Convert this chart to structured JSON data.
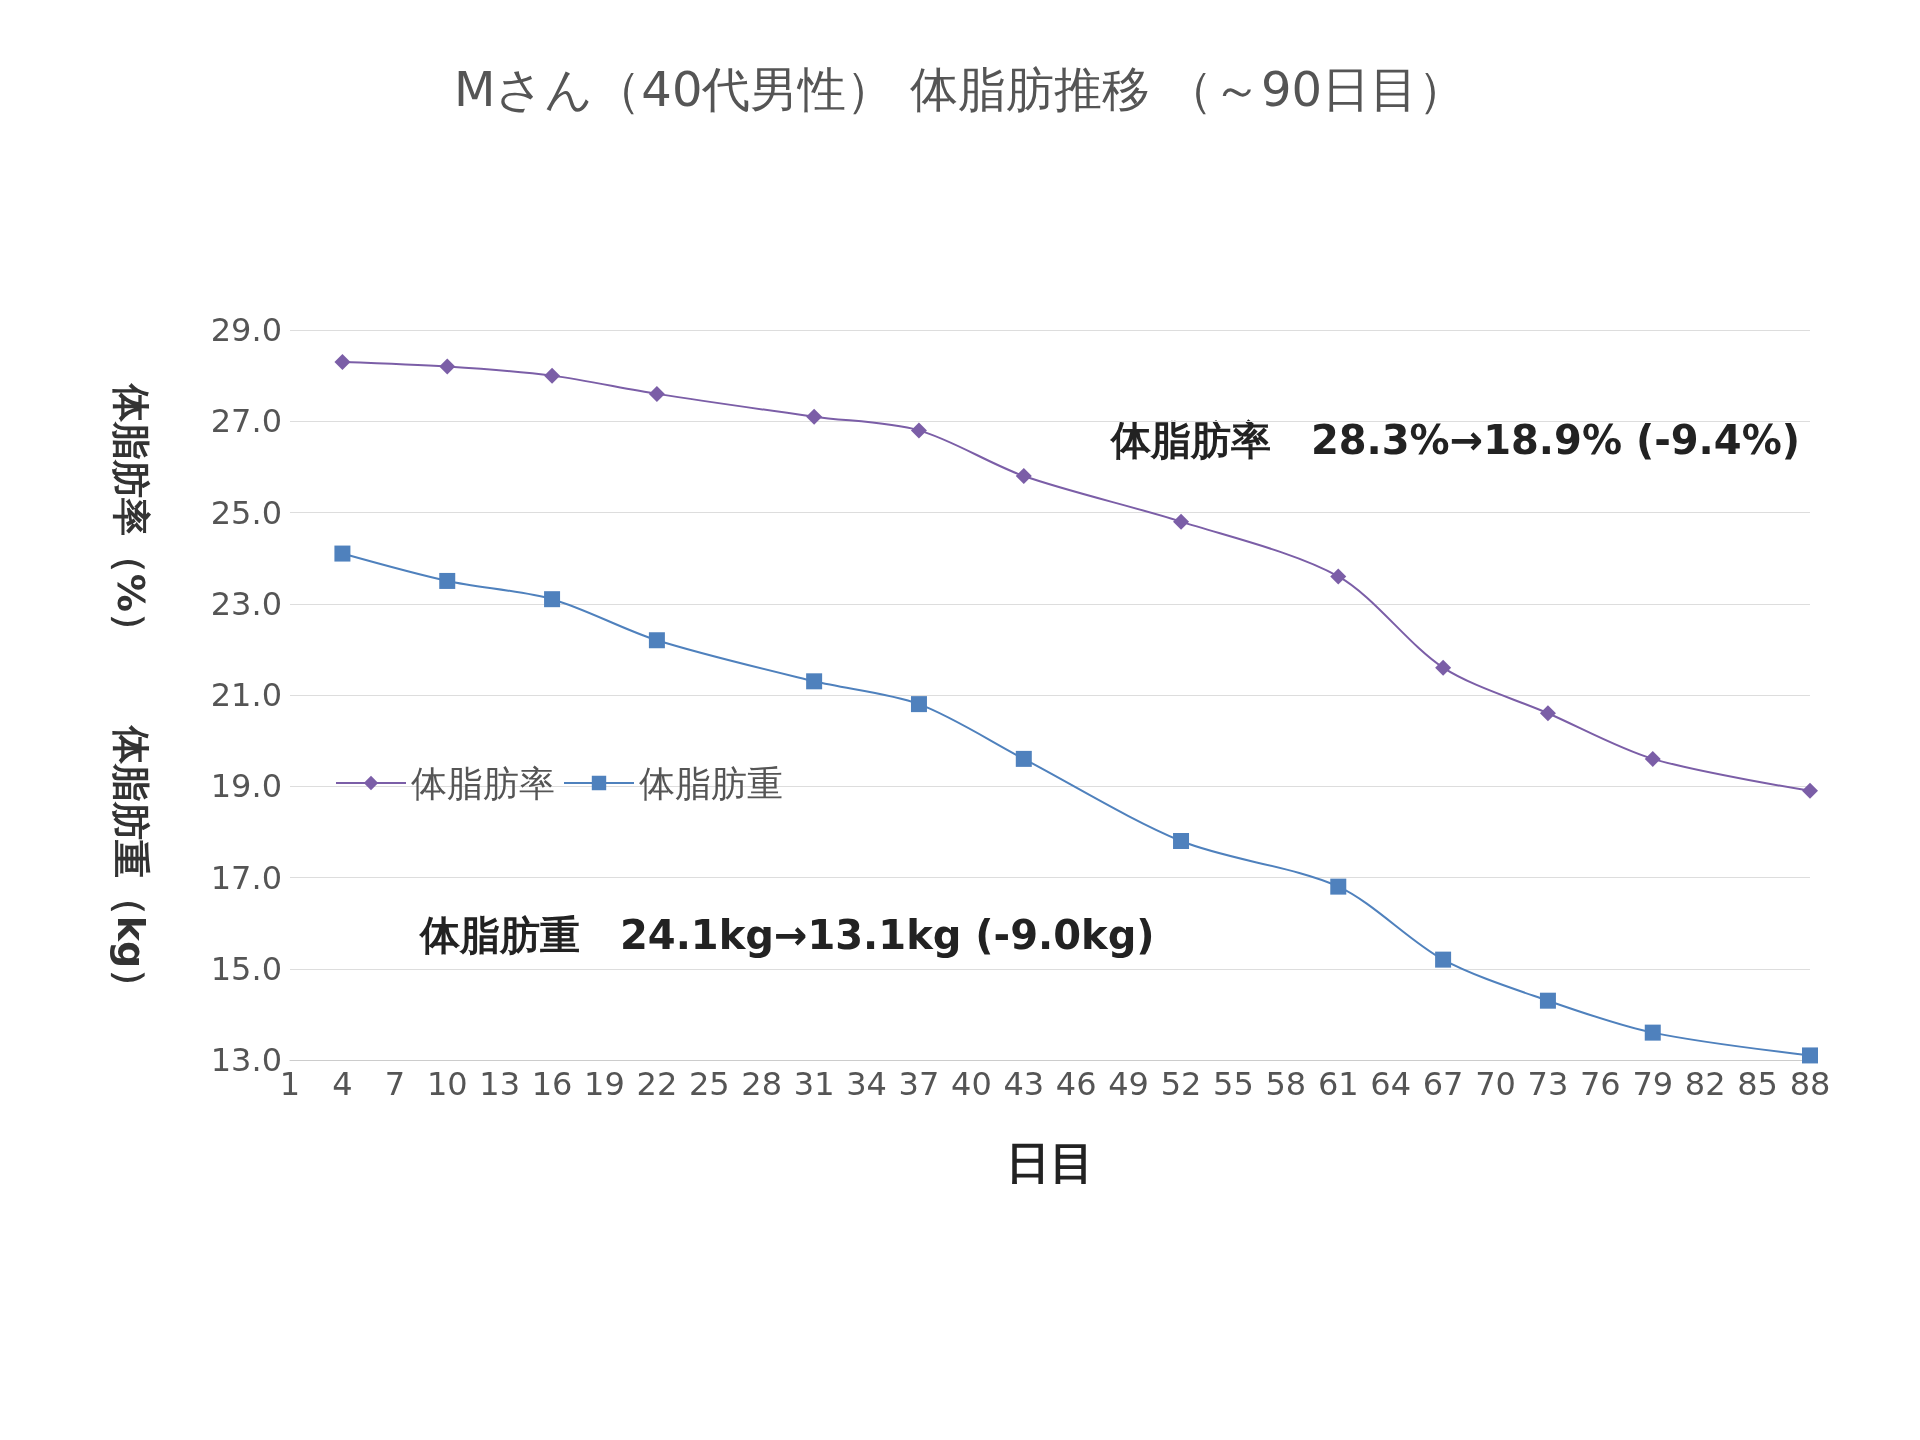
{
  "chart_data": {
    "type": "line",
    "title": "Mさん（40代男性） 体脂肪推移 （～90日目）",
    "xlabel": "日目",
    "ylabel": "体脂肪率（%）　　体脂肪重（kg）",
    "categories": [
      "1",
      "4",
      "7",
      "10",
      "13",
      "16",
      "19",
      "22",
      "25",
      "28",
      "31",
      "34",
      "37",
      "40",
      "43",
      "46",
      "49",
      "52",
      "55",
      "58",
      "61",
      "64",
      "67",
      "70",
      "73",
      "76",
      "79",
      "82",
      "85",
      "88"
    ],
    "series": [
      {
        "name": "体脂肪率",
        "color": "#7b5ea7",
        "marker": "diamond",
        "values": [
          null,
          28.3,
          null,
          28.2,
          null,
          28.0,
          null,
          27.6,
          null,
          null,
          27.1,
          null,
          26.8,
          null,
          25.8,
          null,
          null,
          24.8,
          null,
          null,
          23.6,
          null,
          21.6,
          null,
          20.6,
          null,
          19.6,
          null,
          null,
          18.9
        ]
      },
      {
        "name": "体脂肪重",
        "color": "#4f81bd",
        "marker": "square",
        "values": [
          null,
          24.1,
          null,
          23.5,
          null,
          23.1,
          null,
          22.2,
          null,
          null,
          21.3,
          null,
          20.8,
          null,
          19.6,
          null,
          null,
          17.8,
          null,
          null,
          16.8,
          null,
          15.2,
          null,
          14.3,
          null,
          13.6,
          null,
          null,
          13.1
        ]
      }
    ],
    "ylim": [
      13,
      29
    ],
    "yticks": [
      {
        "value": 13,
        "label": "13.0"
      },
      {
        "value": 15,
        "label": "15.0"
      },
      {
        "value": 17,
        "label": "17.0"
      },
      {
        "value": 19,
        "label": "19.0"
      },
      {
        "value": 21,
        "label": "21.0"
      },
      {
        "value": 23,
        "label": "23.0"
      },
      {
        "value": 25,
        "label": "25.0"
      },
      {
        "value": 27,
        "label": "27.0"
      },
      {
        "value": 29,
        "label": "29.0"
      }
    ],
    "grid": "y",
    "legend": "left",
    "line_style": "solid",
    "annotations": [
      "体脂肪率　28.3%→18.9% (-9.4%)",
      "体脂肪重　24.1kg→13.1kg (-9.0kg)"
    ]
  }
}
